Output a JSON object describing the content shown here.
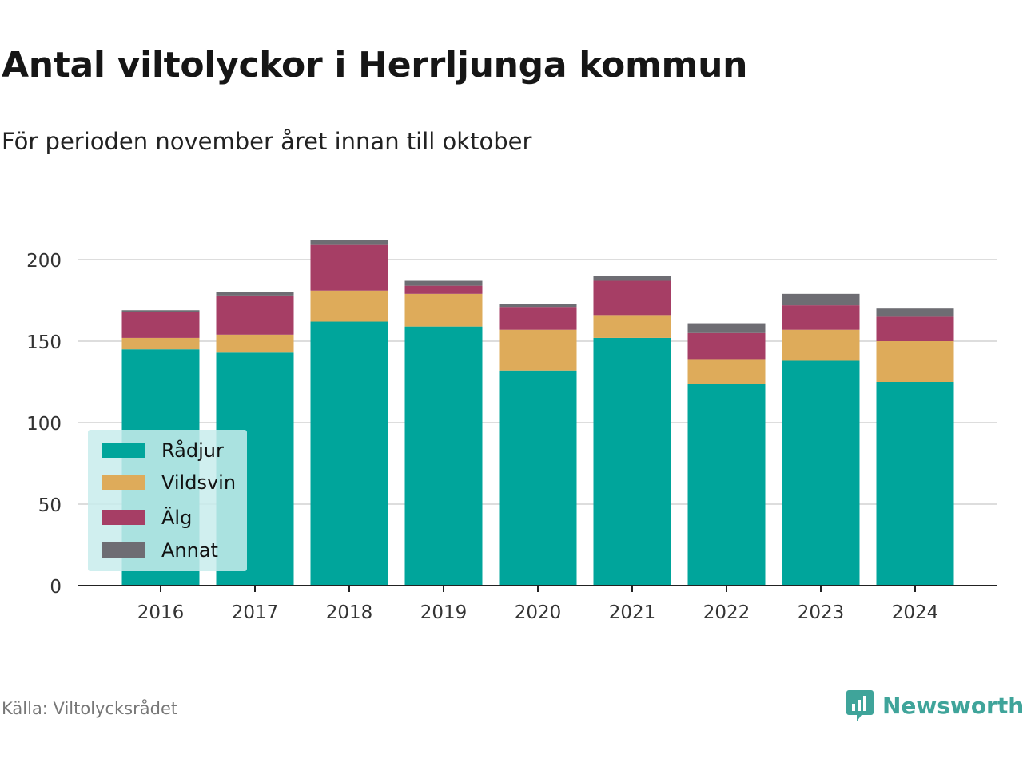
{
  "title": "Antal viltolyckor i Herrljunga kommun",
  "subtitle": "För perioden november året innan till oktober",
  "source": "Källa: Viltolycksrådet",
  "brand": "Newsworthy",
  "colors": {
    "radjur": "#00a59b",
    "vildsvin": "#deab5a",
    "alg": "#a63e65",
    "annat": "#6e6d73",
    "grid": "#dddddd",
    "axis": "#222222",
    "legend_bg": "#c8ecec",
    "brand": "#3fa49a"
  },
  "chart_data": {
    "type": "bar",
    "stacked": true,
    "categories": [
      "2016",
      "2017",
      "2018",
      "2019",
      "2020",
      "2021",
      "2022",
      "2023",
      "2024"
    ],
    "series": [
      {
        "name": "Rådjur",
        "color": "#00a59b",
        "values": [
          145,
          143,
          162,
          159,
          132,
          152,
          124,
          138,
          125
        ]
      },
      {
        "name": "Vildsvin",
        "color": "#deab5a",
        "values": [
          7,
          11,
          19,
          20,
          25,
          14,
          15,
          19,
          25
        ]
      },
      {
        "name": "Älg",
        "color": "#a63e65",
        "values": [
          16,
          24,
          28,
          5,
          14,
          21,
          16,
          15,
          15
        ]
      },
      {
        "name": "Annat",
        "color": "#6e6d73",
        "values": [
          1,
          2,
          3,
          3,
          2,
          3,
          6,
          7,
          5
        ]
      }
    ],
    "ylim": [
      0,
      212
    ],
    "yticks": [
      0,
      50,
      100,
      150,
      200
    ],
    "grid": true,
    "legend": "bottom-left"
  }
}
